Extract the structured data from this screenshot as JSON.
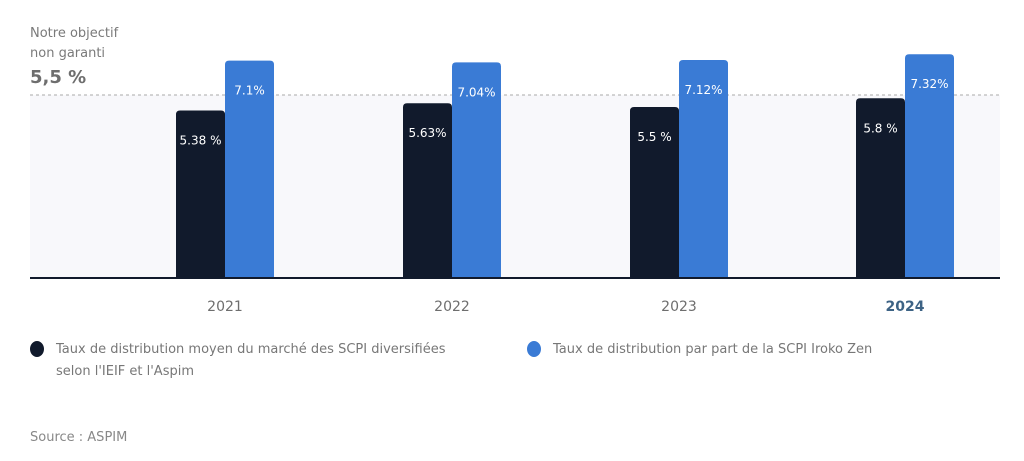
{
  "objective": {
    "label_line1": "Notre objectif",
    "label_line2": "non garanti",
    "value": "5,5 %",
    "target": 5.5
  },
  "chart_data": {
    "type": "bar",
    "categories": [
      "2021",
      "2022",
      "2023",
      "2024"
    ],
    "highlighted_category": "2024",
    "series": [
      {
        "name": "Taux de distribution moyen du marché des SCPI diversifiées selon l'IEIF et l'Aspim",
        "color": "#111a2c",
        "values": [
          5.38,
          5.63,
          5.5,
          5.8
        ],
        "labels": [
          "5.38 %",
          "5.63%",
          "5.5 %",
          "5.8 %"
        ]
      },
      {
        "name": "Taux de distribution par part de la SCPI Iroko Zen",
        "color": "#3a7bd5",
        "values": [
          7.1,
          7.04,
          7.12,
          7.32
        ],
        "labels": [
          "7.1%",
          "7.04%",
          "7.12%",
          "7.32%"
        ]
      }
    ],
    "reference_line": {
      "value": 5.5,
      "style": "dashed"
    },
    "grid": false,
    "legend_position": "bottom"
  },
  "legend": {
    "item1_line1": "Taux de distribution moyen du marché des SCPI diversifiées",
    "item1_line2": "selon l'IEIF et l'Aspim",
    "item2": "Taux de distribution par part de la SCPI Iroko Zen"
  },
  "source": "Source : ASPIM"
}
